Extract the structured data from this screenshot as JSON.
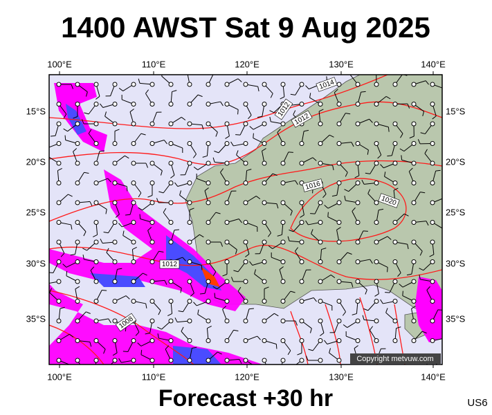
{
  "header": {
    "title": "1400 AWST Sat 9 Aug 2025"
  },
  "map": {
    "longitude_labels": [
      "100°E",
      "110°E",
      "120°E",
      "130°E",
      "140°E"
    ],
    "latitude_labels": [
      "15°S",
      "20°S",
      "25°S",
      "30°S",
      "35°S"
    ],
    "isobar_labels": [
      "1014",
      "1012",
      "1012",
      "1016",
      "1020",
      "1012",
      "1008"
    ],
    "copyright": "Copyright metvuw.com"
  },
  "footer": {
    "forecast": "Forecast +30 hr",
    "code": "US6"
  }
}
